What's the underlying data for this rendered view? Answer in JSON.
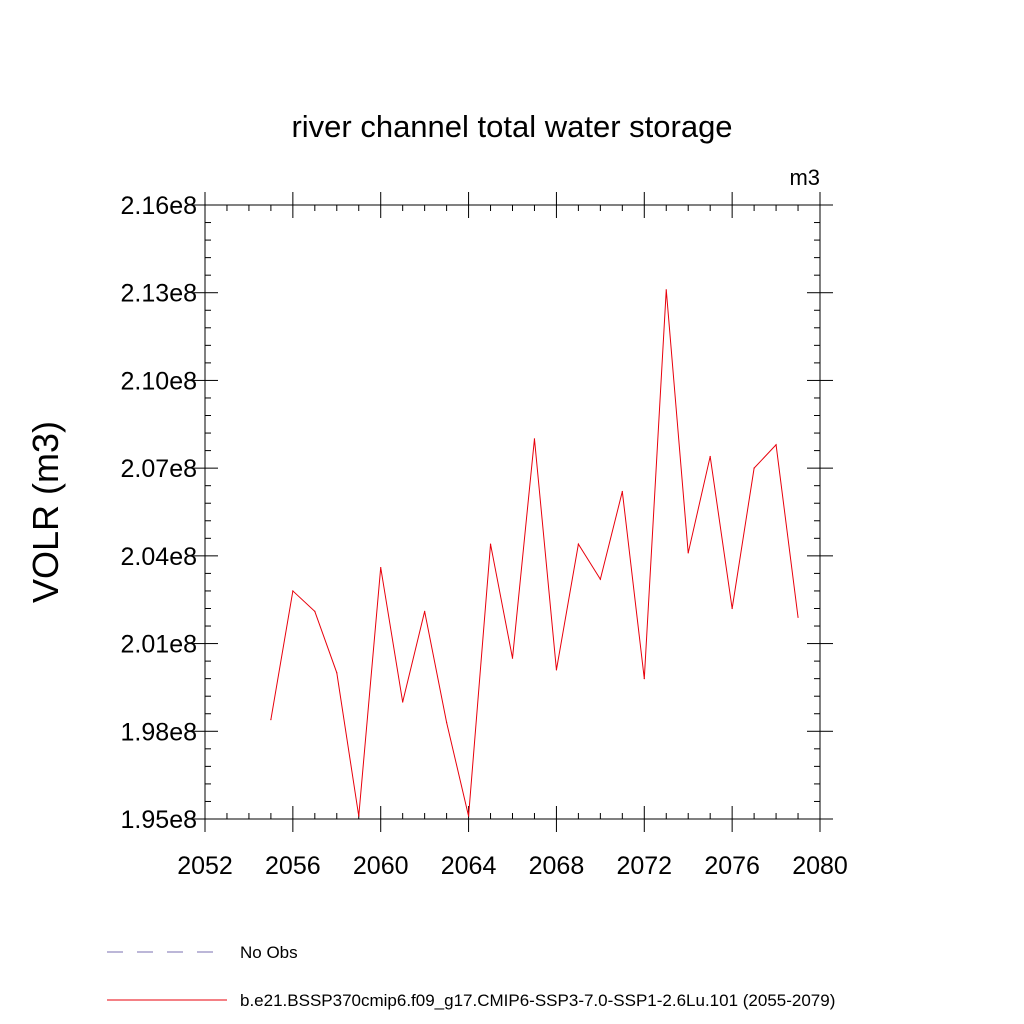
{
  "chart_data": {
    "type": "line",
    "title": "river channel total water storage",
    "units_label": "m3",
    "ylabel": "VOLR  (m3)",
    "xlabel": "",
    "xlim": [
      2052,
      2080
    ],
    "ylim": [
      195000000.0,
      216000000.0
    ],
    "x_ticks": [
      2052,
      2056,
      2060,
      2064,
      2068,
      2072,
      2076,
      2080
    ],
    "x_tick_labels": [
      "2052",
      "2056",
      "2060",
      "2064",
      "2068",
      "2072",
      "2076",
      "2080"
    ],
    "y_ticks": [
      195000000.0,
      198000000.0,
      201000000.0,
      204000000.0,
      207000000.0,
      210000000.0,
      213000000.0,
      216000000.0
    ],
    "y_tick_labels": [
      "1.95e8",
      "1.98e8",
      "2.01e8",
      "2.04e8",
      "2.07e8",
      "2.10e8",
      "2.13e8",
      "2.16e8"
    ],
    "grid": false,
    "legend_position": "bottom",
    "series": [
      {
        "name": "No Obs",
        "color": "#7a6fb0",
        "dash": true,
        "x": [],
        "values": []
      },
      {
        "name": "b.e21.BSSP370cmip6.f09_g17.CMIP6-SSP3-7.0-SSP1-2.6Lu.101 (2055-2079)",
        "color": "#e8000b",
        "dash": false,
        "x": [
          2055,
          2056,
          2057,
          2058,
          2059,
          2060,
          2061,
          2062,
          2063,
          2064,
          2065,
          2066,
          2067,
          2068,
          2069,
          2070,
          2071,
          2072,
          2073,
          2074,
          2075,
          2076,
          2077,
          2078,
          2079
        ],
        "values": [
          198400000.0,
          202800000.0,
          202100000.0,
          200000000.0,
          195100000.0,
          203600000.0,
          199000000.0,
          202100000.0,
          198300000.0,
          195100000.0,
          204400000.0,
          200500000.0,
          208000000.0,
          200100000.0,
          204400000.0,
          203200000.0,
          206200000.0,
          199800000.0,
          213100000.0,
          204100000.0,
          207400000.0,
          202200000.0,
          207000000.0,
          207800000.0,
          201900000.0
        ]
      }
    ]
  }
}
